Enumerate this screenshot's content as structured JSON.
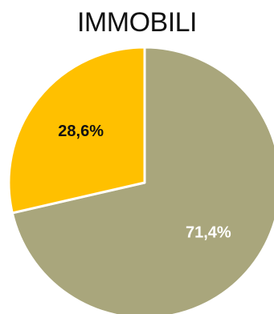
{
  "chart_data": {
    "type": "pie",
    "title": "IMMOBILI",
    "slices": [
      {
        "value": 71.4,
        "label": "71,4%",
        "color": "#a9a67c",
        "label_color": "#ffffff"
      },
      {
        "value": 28.6,
        "label": "28,6%",
        "color": "#ffc000",
        "label_color": "#111111"
      }
    ],
    "start_angle_deg": 0,
    "direction": "clockwise",
    "legend": "none"
  }
}
